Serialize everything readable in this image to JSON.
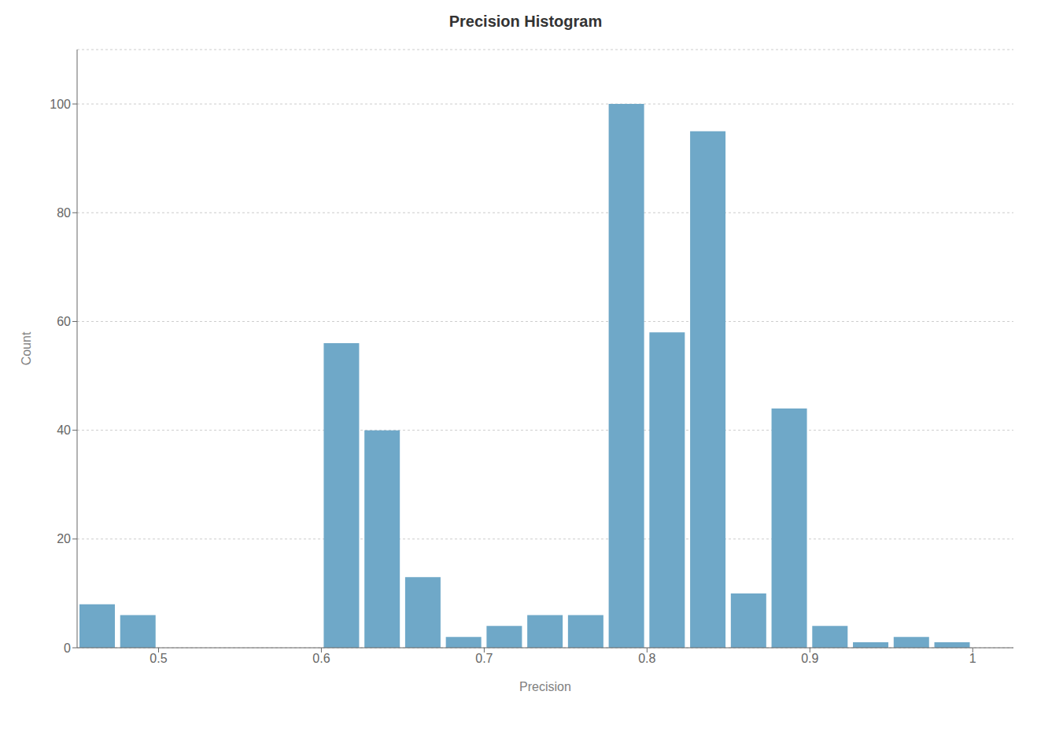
{
  "chart_data": {
    "type": "histogram",
    "title": "Precision Histogram",
    "x_label": "Precision",
    "y_label": "Count",
    "bins": [
      0.45,
      0.475,
      0.5,
      0.525,
      0.55,
      0.575,
      0.6,
      0.625,
      0.65,
      0.675,
      0.7,
      0.725,
      0.75,
      0.775,
      0.8,
      0.825,
      0.85,
      0.875,
      0.9,
      0.925,
      0.95,
      0.975,
      1.0,
      1.025
    ],
    "counts": [
      8,
      6,
      0,
      0,
      0,
      0,
      56,
      40,
      13,
      2,
      4,
      6,
      6,
      100,
      58,
      95,
      10,
      44,
      4,
      1,
      2,
      1,
      0
    ],
    "color": "#6fa8c8",
    "xlim": [
      0.45,
      1.025
    ],
    "ylim": [
      0,
      110
    ],
    "xticks": [
      0.5,
      0.6,
      0.7,
      0.8,
      0.9,
      1
    ],
    "yticks": [
      0,
      20,
      40,
      60,
      80,
      100
    ],
    "grid": true
  }
}
